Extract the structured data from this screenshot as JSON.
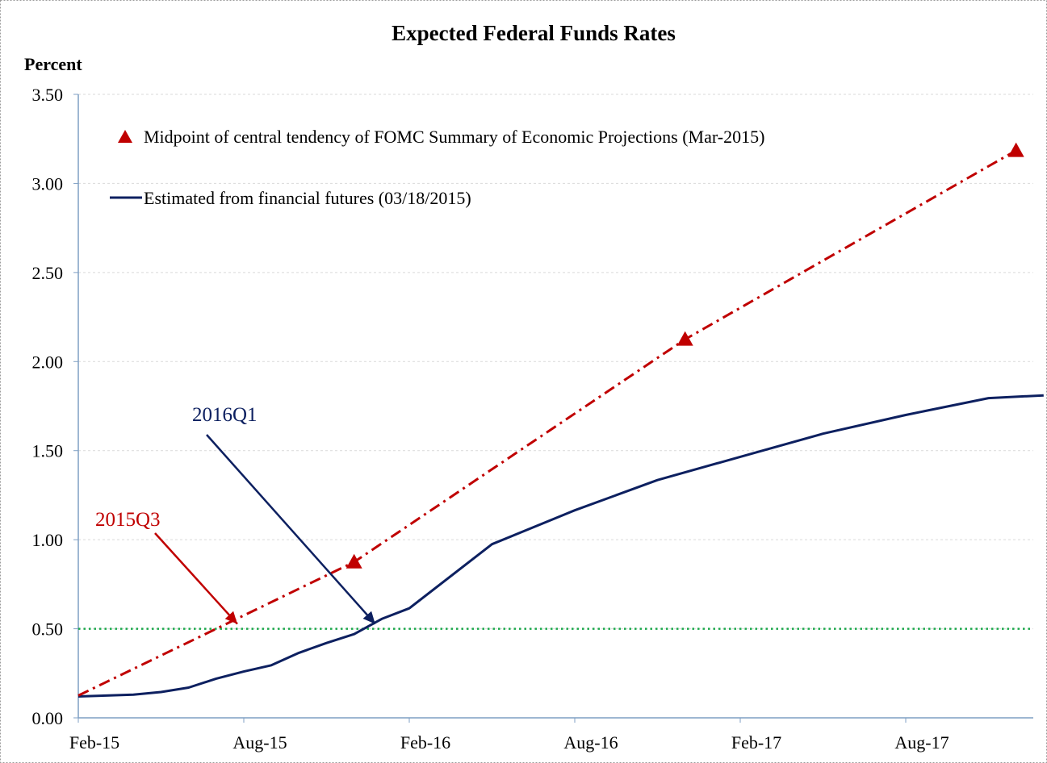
{
  "chart_data": {
    "type": "line",
    "title": "Expected Federal Funds Rates",
    "ylabel": "Percent",
    "xlabel": "",
    "ylim": [
      0,
      3.5
    ],
    "yticks": [
      "0.00",
      "0.50",
      "1.00",
      "1.50",
      "2.00",
      "2.50",
      "3.00",
      "3.50"
    ],
    "xlim": [
      "2015-02",
      "2018-01"
    ],
    "xticks": [
      {
        "date": "2015-02",
        "label": "Feb-15"
      },
      {
        "date": "2015-08",
        "label": "Aug-15"
      },
      {
        "date": "2016-02",
        "label": "Feb-16"
      },
      {
        "date": "2016-08",
        "label": "Aug-16"
      },
      {
        "date": "2017-02",
        "label": "Feb-17"
      },
      {
        "date": "2017-08",
        "label": "Aug-17"
      }
    ],
    "grid": true,
    "reference_line": {
      "y": 0.5,
      "color": "#1aa84a"
    },
    "series": [
      {
        "name": "Estimated from financial futures (03/18/2015)",
        "color": "#0d2060",
        "style": "solid",
        "points": [
          {
            "x": "2015-02",
            "y": 0.12
          },
          {
            "x": "2015-03",
            "y": 0.125
          },
          {
            "x": "2015-04",
            "y": 0.13
          },
          {
            "x": "2015-05",
            "y": 0.145
          },
          {
            "x": "2015-06",
            "y": 0.17
          },
          {
            "x": "2015-07",
            "y": 0.22
          },
          {
            "x": "2015-08",
            "y": 0.26
          },
          {
            "x": "2015-09",
            "y": 0.295
          },
          {
            "x": "2015-10",
            "y": 0.365
          },
          {
            "x": "2015-11",
            "y": 0.42
          },
          {
            "x": "2015-12",
            "y": 0.47
          },
          {
            "x": "2016-01",
            "y": 0.555
          },
          {
            "x": "2016-02",
            "y": 0.615
          },
          {
            "x": "2016-05",
            "y": 0.975
          },
          {
            "x": "2016-08",
            "y": 1.165
          },
          {
            "x": "2016-11",
            "y": 1.335
          },
          {
            "x": "2017-02",
            "y": 1.465
          },
          {
            "x": "2017-05",
            "y": 1.595
          },
          {
            "x": "2017-08",
            "y": 1.7
          },
          {
            "x": "2017-11",
            "y": 1.795
          },
          {
            "x": "2018-01",
            "y": 1.81
          }
        ]
      },
      {
        "name": "Midpoint of central tendency of FOMC Summary of Economic Projections (Mar-2015)",
        "color": "#c00000",
        "style": "dash-dot",
        "marker": "triangle",
        "points": [
          {
            "x": "2015-02",
            "y": 0.125
          },
          {
            "x": "2015-12",
            "y": 0.875
          },
          {
            "x": "2016-12",
            "y": 2.125
          },
          {
            "x": "2017-12",
            "y": 3.185
          }
        ],
        "marker_indices": [
          1,
          2,
          3
        ]
      }
    ],
    "annotations": [
      {
        "text": "2015Q3",
        "color": "#c00000",
        "target": {
          "x": "2015-08",
          "y": 0.5
        }
      },
      {
        "text": "2016Q1",
        "color": "#0d2060",
        "target": {
          "x": "2016-01",
          "y": 0.5
        }
      }
    ],
    "legend": {
      "placement": "top-left"
    }
  }
}
